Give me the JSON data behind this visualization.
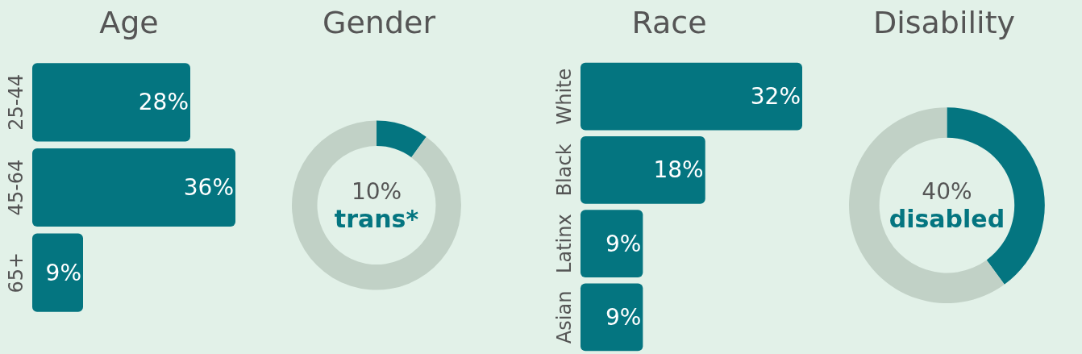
{
  "chart_data": [
    {
      "type": "bar",
      "orientation": "horizontal",
      "title": "Age",
      "categories": [
        "25-44",
        "45-64",
        "65+"
      ],
      "values": [
        28,
        36,
        9
      ],
      "value_labels": [
        "28%",
        "36%",
        "9%"
      ],
      "color": "#047580",
      "grid": false,
      "legend": false
    },
    {
      "type": "donut",
      "title": "Gender",
      "categories": [
        "trans*",
        null
      ],
      "values": [
        10,
        90
      ],
      "value_labels": [
        "10%",
        null
      ],
      "colors": [
        "#047580",
        "#c1d1c6"
      ],
      "legend": false
    },
    {
      "type": "bar",
      "orientation": "horizontal",
      "title": "Race",
      "categories": [
        "White",
        "Black",
        "Latinx",
        "Asian"
      ],
      "values": [
        32,
        18,
        9,
        9
      ],
      "value_labels": [
        "32%",
        "18%",
        "9%",
        "9%"
      ],
      "color": "#047580",
      "grid": false,
      "legend": false
    },
    {
      "type": "donut",
      "title": "Disability",
      "categories": [
        "disabled",
        null
      ],
      "values": [
        40,
        60
      ],
      "value_labels": [
        "40%",
        null
      ],
      "colors": [
        "#047580",
        "#c1d1c6"
      ],
      "legend": false
    }
  ]
}
